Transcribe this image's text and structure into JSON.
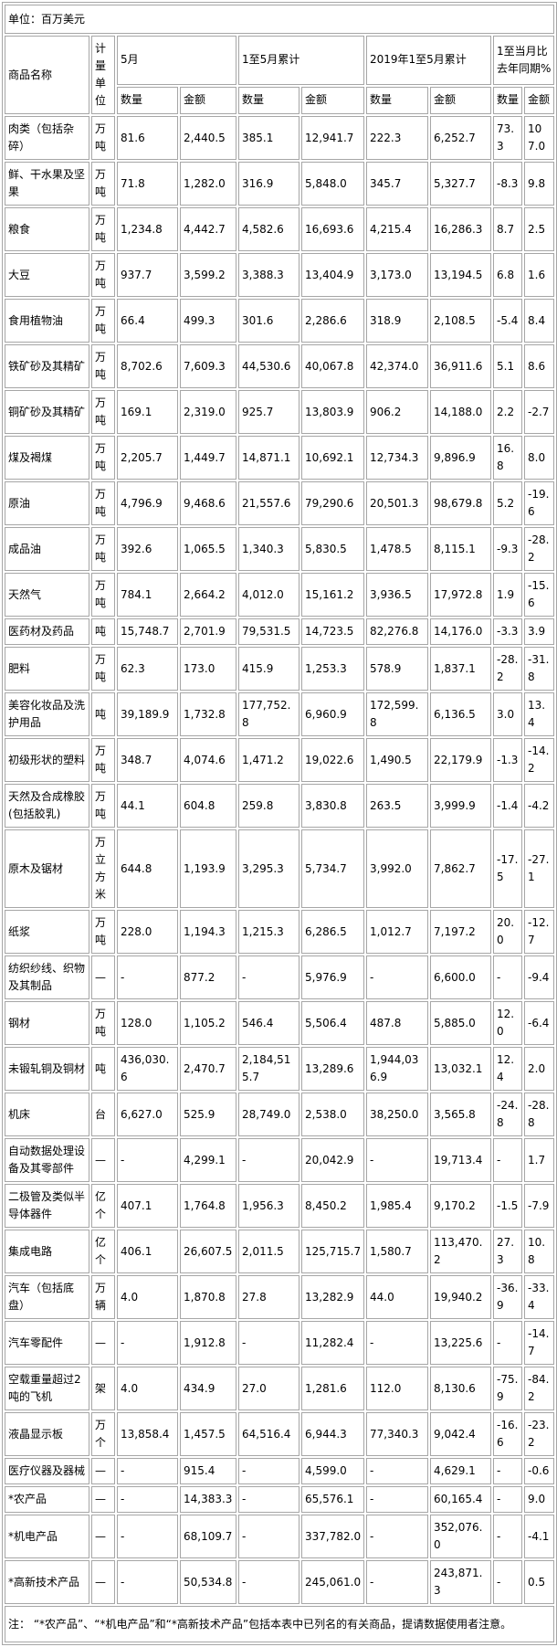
{
  "colors": {
    "border": "#a6a6a6",
    "text": "#000000",
    "background": "#ffffff"
  },
  "page": {
    "unit_label": "单位：百万美元"
  },
  "table": {
    "header": {
      "commodity": "商品名称",
      "unit": "计量单位",
      "groups": [
        {
          "label": "5月"
        },
        {
          "label": "1至5月累计"
        },
        {
          "label": "2019年1至5月累计"
        },
        {
          "label": "1至当月比去年同期%"
        }
      ],
      "qty": "数量",
      "amt": "金额"
    },
    "rows": [
      {
        "name": "肉类（包括杂碎）",
        "unit": "万吨",
        "cells": [
          "81.6",
          "2,440.5",
          "385.1",
          "12,941.7",
          "222.3",
          "6,252.7",
          "73.3",
          "107.0"
        ]
      },
      {
        "name": "鲜、干水果及坚果",
        "unit": "万吨",
        "cells": [
          "71.8",
          "1,282.0",
          "316.9",
          "5,848.0",
          "345.7",
          "5,327.7",
          "-8.3",
          "9.8"
        ]
      },
      {
        "name": "粮食",
        "unit": "万吨",
        "cells": [
          "1,234.8",
          "4,442.7",
          "4,582.6",
          "16,693.6",
          "4,215.4",
          "16,286.3",
          "8.7",
          "2.5"
        ]
      },
      {
        "name": "大豆",
        "unit": "万吨",
        "cells": [
          "937.7",
          "3,599.2",
          "3,388.3",
          "13,404.9",
          "3,173.0",
          "13,194.5",
          "6.8",
          "1.6"
        ]
      },
      {
        "name": "食用植物油",
        "unit": "万吨",
        "cells": [
          "66.4",
          "499.3",
          "301.6",
          "2,286.6",
          "318.9",
          "2,108.5",
          "-5.4",
          "8.4"
        ]
      },
      {
        "name": "铁矿砂及其精矿",
        "unit": "万吨",
        "cells": [
          "8,702.6",
          "7,609.3",
          "44,530.6",
          "40,067.8",
          "42,374.0",
          "36,911.6",
          "5.1",
          "8.6"
        ]
      },
      {
        "name": "铜矿砂及其精矿",
        "unit": "万吨",
        "cells": [
          "169.1",
          "2,319.0",
          "925.7",
          "13,803.9",
          "906.2",
          "14,188.0",
          "2.2",
          "-2.7"
        ]
      },
      {
        "name": "煤及褐煤",
        "unit": "万吨",
        "cells": [
          "2,205.7",
          "1,449.7",
          "14,871.1",
          "10,692.1",
          "12,734.3",
          "9,896.9",
          "16.8",
          "8.0"
        ]
      },
      {
        "name": "原油",
        "unit": "万吨",
        "cells": [
          "4,796.9",
          "9,468.6",
          "21,557.6",
          "79,290.6",
          "20,501.3",
          "98,679.8",
          "5.2",
          "-19.6"
        ]
      },
      {
        "name": "成品油",
        "unit": "万吨",
        "cells": [
          "392.6",
          "1,065.5",
          "1,340.3",
          "5,830.5",
          "1,478.5",
          "8,115.1",
          "-9.3",
          "-28.2"
        ]
      },
      {
        "name": "天然气",
        "unit": "万吨",
        "cells": [
          "784.1",
          "2,664.2",
          "4,012.0",
          "15,161.2",
          "3,936.5",
          "17,972.8",
          "1.9",
          "-15.6"
        ]
      },
      {
        "name": "医药材及药品",
        "unit": "吨",
        "cells": [
          "15,748.7",
          "2,701.9",
          "79,531.5",
          "14,723.5",
          "82,276.8",
          "14,176.0",
          "-3.3",
          "3.9"
        ]
      },
      {
        "name": "肥料",
        "unit": "万吨",
        "cells": [
          "62.3",
          "173.0",
          "415.9",
          "1,253.3",
          "578.9",
          "1,837.1",
          "-28.2",
          "-31.8"
        ]
      },
      {
        "name": "美容化妆品及洗护用品",
        "unit": "吨",
        "cells": [
          "39,189.9",
          "1,732.8",
          "177,752.8",
          "6,960.9",
          "172,599.8",
          "6,136.5",
          "3.0",
          "13.4"
        ]
      },
      {
        "name": "初级形状的塑料",
        "unit": "万吨",
        "cells": [
          "348.7",
          "4,074.6",
          "1,471.2",
          "19,022.6",
          "1,490.5",
          "22,179.9",
          "-1.3",
          "-14.2"
        ]
      },
      {
        "name": "天然及合成橡胶(包括胶乳)",
        "unit": "万吨",
        "cells": [
          "44.1",
          "604.8",
          "259.8",
          "3,830.8",
          "263.5",
          "3,999.9",
          "-1.4",
          "-4.2"
        ]
      },
      {
        "name": "原木及锯材",
        "unit": "万立方米",
        "cells": [
          "644.8",
          "1,193.9",
          "3,295.3",
          "5,734.7",
          "3,992.0",
          "7,862.7",
          "-17.5",
          "-27.1"
        ]
      },
      {
        "name": "纸浆",
        "unit": "万吨",
        "cells": [
          "228.0",
          "1,194.3",
          "1,215.3",
          "6,286.5",
          "1,012.7",
          "7,197.2",
          "20.0",
          "-12.7"
        ]
      },
      {
        "name": "纺织纱线、织物及其制品",
        "unit": "—",
        "cells": [
          "-",
          "877.2",
          "-",
          "5,976.9",
          "-",
          "6,600.0",
          "-",
          "-9.4"
        ]
      },
      {
        "name": "钢材",
        "unit": "万吨",
        "cells": [
          "128.0",
          "1,105.2",
          "546.4",
          "5,506.4",
          "487.8",
          "5,885.0",
          "12.0",
          "-6.4"
        ]
      },
      {
        "name": "未锻轧铜及铜材",
        "unit": "吨",
        "cells": [
          "436,030.6",
          "2,470.7",
          "2,184,515.7",
          "13,289.6",
          "1,944,036.9",
          "13,032.1",
          "12.4",
          "2.0"
        ]
      },
      {
        "name": "机床",
        "unit": "台",
        "cells": [
          "6,627.0",
          "525.9",
          "28,749.0",
          "2,538.0",
          "38,250.0",
          "3,565.8",
          "-24.8",
          "-28.8"
        ]
      },
      {
        "name": "自动数据处理设备及其零部件",
        "unit": "—",
        "cells": [
          "-",
          "4,299.1",
          "-",
          "20,042.9",
          "-",
          "19,713.4",
          "-",
          "1.7"
        ]
      },
      {
        "name": "二极管及类似半导体器件",
        "unit": "亿个",
        "cells": [
          "407.1",
          "1,764.8",
          "1,956.3",
          "8,450.2",
          "1,985.4",
          "9,170.2",
          "-1.5",
          "-7.9"
        ]
      },
      {
        "name": "集成电路",
        "unit": "亿个",
        "cells": [
          "406.1",
          "26,607.5",
          "2,011.5",
          "125,715.7",
          "1,580.7",
          "113,470.2",
          "27.3",
          "10.8"
        ]
      },
      {
        "name": "汽车（包括底盘）",
        "unit": "万辆",
        "cells": [
          "4.0",
          "1,870.8",
          "27.8",
          "13,282.9",
          "44.0",
          "19,940.2",
          "-36.9",
          "-33.4"
        ]
      },
      {
        "name": "汽车零配件",
        "unit": "—",
        "cells": [
          "-",
          "1,912.8",
          "-",
          "11,282.4",
          "-",
          "13,225.6",
          "-",
          "-14.7"
        ]
      },
      {
        "name": "空载重量超过2吨的飞机",
        "unit": "架",
        "cells": [
          "4.0",
          "434.9",
          "27.0",
          "1,281.6",
          "112.0",
          "8,130.6",
          "-75.9",
          "-84.2"
        ]
      },
      {
        "name": "液晶显示板",
        "unit": "万个",
        "cells": [
          "13,858.4",
          "1,457.5",
          "64,516.4",
          "6,944.3",
          "77,340.3",
          "9,042.4",
          "-16.6",
          "-23.2"
        ]
      },
      {
        "name": "医疗仪器及器械",
        "unit": "—",
        "cells": [
          "-",
          "915.4",
          "-",
          "4,599.0",
          "-",
          "4,629.1",
          "-",
          "-0.6"
        ]
      },
      {
        "name": "*农产品",
        "unit": "—",
        "cells": [
          "-",
          "14,383.3",
          "-",
          "65,576.1",
          "-",
          "60,165.4",
          "-",
          "9.0"
        ]
      },
      {
        "name": "*机电产品",
        "unit": "—",
        "cells": [
          "-",
          "68,109.7",
          "-",
          "337,782.0",
          "-",
          "352,076.0",
          "-",
          "-4.1"
        ]
      },
      {
        "name": "*高新技术产品",
        "unit": "—",
        "cells": [
          "-",
          "50,534.8",
          "-",
          "245,061.0",
          "-",
          "243,871.3",
          "-",
          "0.5"
        ]
      }
    ],
    "note": "注： “*农产品”、“*机电产品”和“*高新技术产品”包括本表中已列名的有关商品，提请数据使用者注意。"
  }
}
